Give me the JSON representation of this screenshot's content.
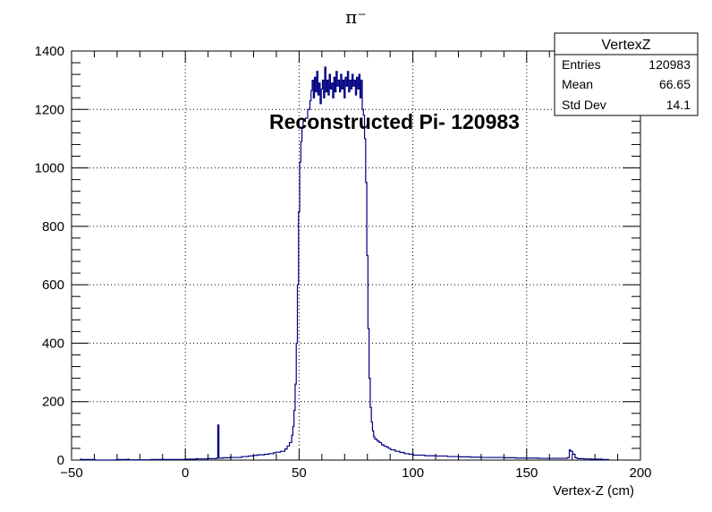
{
  "chart_data": {
    "type": "histogram",
    "title": "π⁻",
    "xlabel": "Vertex-Z (cm)",
    "ylabel": "",
    "xlim": [
      -50,
      200
    ],
    "ylim": [
      0,
      1400
    ],
    "grid": true,
    "x_ticks": [
      "−50",
      "0",
      "50",
      "100",
      "150",
      "200"
    ],
    "y_ticks": [
      "0",
      "200",
      "400",
      "600",
      "800",
      "1000",
      "1200",
      "1400"
    ],
    "annotation": "Reconstructed Pi- 120983",
    "line_color": "#000080",
    "stats_box": {
      "title": "VertexZ",
      "rows": [
        {
          "label": "Entries",
          "value": "120983"
        },
        {
          "label": "Mean",
          "value": "66.65"
        },
        {
          "label": "Std Dev",
          "value": "14.1"
        }
      ]
    },
    "bin_width": 0.5,
    "series": [
      {
        "points": [
          [
            -46,
            3
          ],
          [
            -40,
            2
          ],
          [
            -35,
            0
          ],
          [
            -30,
            2
          ],
          [
            -25,
            3
          ],
          [
            -20,
            1
          ],
          [
            -15,
            2
          ],
          [
            -10,
            3
          ],
          [
            -5,
            2
          ],
          [
            0,
            3
          ],
          [
            5,
            5
          ],
          [
            8,
            4
          ],
          [
            10,
            6
          ],
          [
            12,
            5
          ],
          [
            14,
            7
          ],
          [
            14.5,
            120
          ],
          [
            15,
            7
          ],
          [
            17,
            8
          ],
          [
            20,
            10
          ],
          [
            22,
            9
          ],
          [
            25,
            12
          ],
          [
            28,
            14
          ],
          [
            30,
            16
          ],
          [
            32,
            18
          ],
          [
            35,
            20
          ],
          [
            37,
            22
          ],
          [
            39,
            25
          ],
          [
            40,
            27
          ],
          [
            42,
            30
          ],
          [
            44,
            38
          ],
          [
            45,
            48
          ],
          [
            46,
            60
          ],
          [
            47,
            85
          ],
          [
            47.5,
            115
          ],
          [
            48,
            170
          ],
          [
            48.5,
            260
          ],
          [
            49,
            400
          ],
          [
            49.5,
            600
          ],
          [
            50,
            850
          ],
          [
            50.5,
            1020
          ],
          [
            51,
            1090
          ],
          [
            51.5,
            1140
          ],
          [
            52,
            1160
          ],
          [
            53,
            1170
          ],
          [
            54,
            1200
          ],
          [
            55,
            1230
          ],
          [
            55.5,
            1265
          ],
          [
            56,
            1300
          ],
          [
            56.5,
            1240
          ],
          [
            57,
            1310
          ],
          [
            57.5,
            1260
          ],
          [
            58,
            1330
          ],
          [
            58.5,
            1250
          ],
          [
            59,
            1290
          ],
          [
            59.5,
            1220
          ],
          [
            60,
            1270
          ],
          [
            60.5,
            1300
          ],
          [
            61,
            1240
          ],
          [
            61.5,
            1345
          ],
          [
            62,
            1260
          ],
          [
            62.5,
            1300
          ],
          [
            63,
            1250
          ],
          [
            63.5,
            1320
          ],
          [
            64,
            1270
          ],
          [
            64.5,
            1290
          ],
          [
            65,
            1240
          ],
          [
            65.5,
            1310
          ],
          [
            66,
            1260
          ],
          [
            66.5,
            1330
          ],
          [
            67,
            1280
          ],
          [
            67.5,
            1300
          ],
          [
            68,
            1260
          ],
          [
            68.5,
            1320
          ],
          [
            69,
            1270
          ],
          [
            69.5,
            1300
          ],
          [
            70,
            1240
          ],
          [
            70.5,
            1310
          ],
          [
            71,
            1280
          ],
          [
            71.5,
            1330
          ],
          [
            72,
            1260
          ],
          [
            72.5,
            1300
          ],
          [
            73,
            1270
          ],
          [
            73.5,
            1320
          ],
          [
            74,
            1280
          ],
          [
            74.5,
            1300
          ],
          [
            75,
            1250
          ],
          [
            75.5,
            1310
          ],
          [
            76,
            1270
          ],
          [
            76.5,
            1320
          ],
          [
            77,
            1240
          ],
          [
            77.5,
            1300
          ],
          [
            78,
            1200
          ],
          [
            78.5,
            1180
          ],
          [
            79,
            1100
          ],
          [
            79.5,
            950
          ],
          [
            80,
            700
          ],
          [
            80.5,
            450
          ],
          [
            81,
            280
          ],
          [
            81.5,
            180
          ],
          [
            82,
            130
          ],
          [
            82.5,
            100
          ],
          [
            83,
            80
          ],
          [
            84,
            72
          ],
          [
            85,
            65
          ],
          [
            86,
            60
          ],
          [
            87,
            52
          ],
          [
            88,
            48
          ],
          [
            89,
            45
          ],
          [
            90,
            40
          ],
          [
            92,
            35
          ],
          [
            94,
            30
          ],
          [
            96,
            26
          ],
          [
            98,
            22
          ],
          [
            100,
            20
          ],
          [
            105,
            17
          ],
          [
            110,
            15
          ],
          [
            115,
            14
          ],
          [
            120,
            12
          ],
          [
            125,
            11
          ],
          [
            130,
            10
          ],
          [
            135,
            9
          ],
          [
            140,
            9
          ],
          [
            145,
            8
          ],
          [
            150,
            7
          ],
          [
            155,
            7
          ],
          [
            160,
            6
          ],
          [
            165,
            6
          ],
          [
            168,
            8
          ],
          [
            169,
            35
          ],
          [
            170,
            30
          ],
          [
            171,
            20
          ],
          [
            172,
            8
          ],
          [
            175,
            5
          ],
          [
            178,
            4
          ],
          [
            180,
            3
          ],
          [
            183,
            3
          ],
          [
            186,
            2
          ]
        ]
      }
    ]
  }
}
